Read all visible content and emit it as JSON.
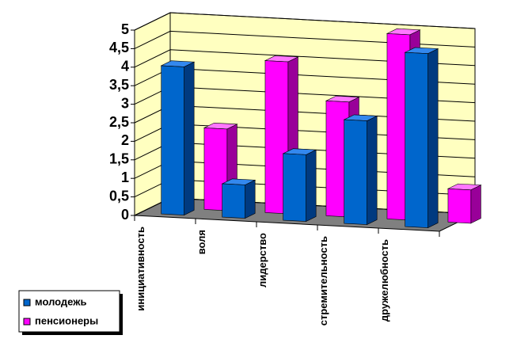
{
  "chart_data": {
    "type": "bar3d",
    "categories": [
      "инициативность",
      "воля",
      "лидерство",
      "стремительность",
      "дружелюбность"
    ],
    "series": [
      {
        "name": "молодежь",
        "color": "#0066cc",
        "values": [
          4.0,
          0.9,
          1.8,
          2.8,
          4.7
        ]
      },
      {
        "name": "пенсионеры",
        "color": "#ff00ff",
        "values": [
          2.2,
          4.1,
          3.1,
          5.0,
          0.9
        ]
      }
    ],
    "ylim": [
      0,
      5
    ],
    "yticks": [
      0,
      {
        "value": 0.5,
        "label": "0,5"
      },
      1,
      {
        "value": 1.5,
        "label": "1,5"
      },
      2,
      {
        "value": 2.5,
        "label": "2,5"
      },
      3,
      {
        "value": 3.5,
        "label": "3,5"
      },
      4,
      {
        "value": 4.5,
        "label": "4,5"
      },
      5
    ],
    "grid": true
  }
}
